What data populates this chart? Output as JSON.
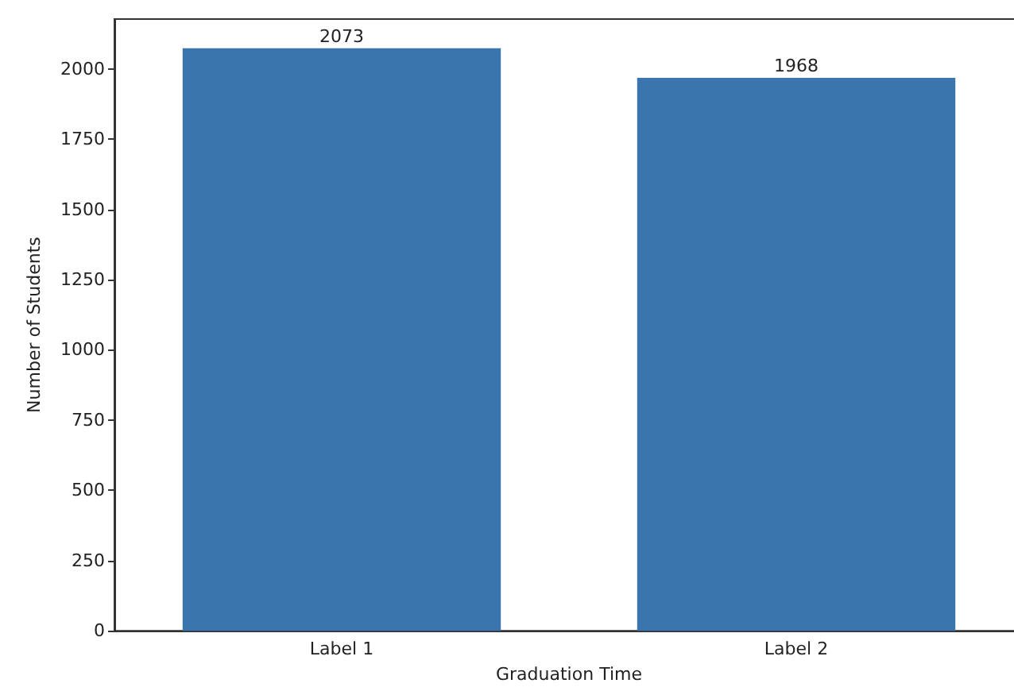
{
  "chart_data": {
    "type": "bar",
    "xlabel": "Graduation Time",
    "ylabel": "Number of Students",
    "categories": [
      "Label 1",
      "Label 2"
    ],
    "values": [
      2073,
      1968
    ],
    "color": "#3a75ae",
    "ylim": [
      0,
      2177
    ],
    "yticks": [
      0,
      250,
      500,
      750,
      1000,
      1250,
      1500,
      1750,
      2000
    ],
    "grid": false,
    "data_labels": true
  }
}
